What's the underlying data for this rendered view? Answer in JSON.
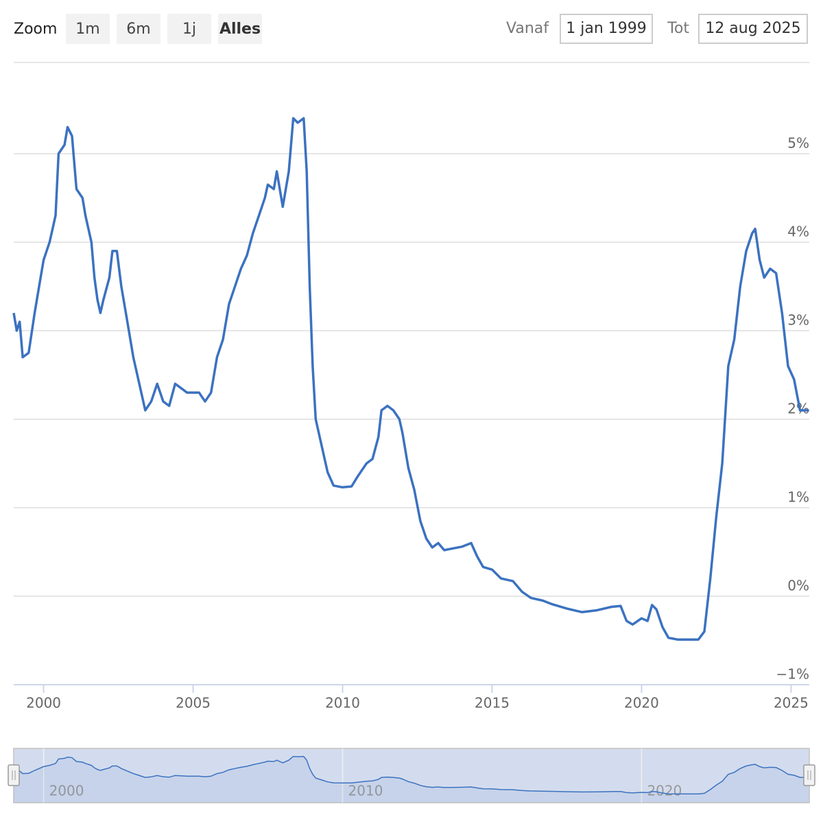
{
  "range_selector": {
    "zoom_label": "Zoom",
    "buttons": [
      "1m",
      "6m",
      "1j",
      "Alles"
    ],
    "from_label": "Vanaf",
    "from": "1 jan 1999",
    "to_label": "Tot",
    "to": "12 aug 2025"
  },
  "chart_data": {
    "type": "line",
    "color": "#3b72c0",
    "grid": true,
    "xlim": [
      1999.0,
      2025.61
    ],
    "xticks": [
      2000,
      2005,
      2010,
      2015,
      2020,
      2025
    ],
    "ylim": [
      -1,
      6
    ],
    "yticks": [
      {
        "value": -1,
        "label": "−1%"
      },
      {
        "value": 0,
        "label": "0%"
      },
      {
        "value": 1,
        "label": "1%"
      },
      {
        "value": 2,
        "label": "2%"
      },
      {
        "value": 3,
        "label": "3%"
      },
      {
        "value": 4,
        "label": "4%"
      },
      {
        "value": 5,
        "label": "5%"
      }
    ],
    "navigator_xticks": [
      2000,
      2010,
      2020
    ],
    "x": [
      1999.0,
      1999.1,
      1999.2,
      1999.3,
      1999.5,
      1999.7,
      1999.9,
      2000.0,
      2000.2,
      2000.4,
      2000.5,
      2000.7,
      2000.8,
      2000.95,
      2001.1,
      2001.3,
      2001.4,
      2001.6,
      2001.7,
      2001.8,
      2001.9,
      2002.0,
      2002.2,
      2002.3,
      2002.45,
      2002.6,
      2002.8,
      2003.0,
      2003.2,
      2003.4,
      2003.6,
      2003.8,
      2004.0,
      2004.2,
      2004.4,
      2004.6,
      2004.8,
      2005.0,
      2005.2,
      2005.4,
      2005.6,
      2005.8,
      2006.0,
      2006.2,
      2006.4,
      2006.6,
      2006.8,
      2007.0,
      2007.2,
      2007.4,
      2007.5,
      2007.7,
      2007.8,
      2008.0,
      2008.2,
      2008.35,
      2008.5,
      2008.7,
      2008.8,
      2008.9,
      2009.0,
      2009.1,
      2009.3,
      2009.5,
      2009.7,
      2010.0,
      2010.3,
      2010.5,
      2010.8,
      2011.0,
      2011.2,
      2011.3,
      2011.5,
      2011.7,
      2011.9,
      2012.0,
      2012.2,
      2012.4,
      2012.6,
      2012.8,
      2013.0,
      2013.2,
      2013.4,
      2013.7,
      2014.0,
      2014.3,
      2014.5,
      2014.7,
      2015.0,
      2015.3,
      2015.7,
      2016.0,
      2016.3,
      2016.7,
      2017.0,
      2017.5,
      2018.0,
      2018.5,
      2019.0,
      2019.3,
      2019.5,
      2019.7,
      2020.0,
      2020.2,
      2020.35,
      2020.5,
      2020.7,
      2020.9,
      2021.2,
      2021.6,
      2021.9,
      2022.1,
      2022.3,
      2022.5,
      2022.7,
      2022.9,
      2023.1,
      2023.3,
      2023.5,
      2023.7,
      2023.8,
      2023.95,
      2024.1,
      2024.3,
      2024.5,
      2024.7,
      2024.9,
      2025.1,
      2025.3,
      2025.6
    ],
    "values": [
      3.2,
      3.0,
      3.1,
      2.7,
      2.75,
      3.2,
      3.6,
      3.8,
      4.0,
      4.3,
      5.0,
      5.1,
      5.3,
      5.2,
      4.6,
      4.5,
      4.3,
      4.0,
      3.6,
      3.35,
      3.2,
      3.35,
      3.6,
      3.9,
      3.9,
      3.5,
      3.1,
      2.7,
      2.4,
      2.1,
      2.2,
      2.4,
      2.2,
      2.15,
      2.4,
      2.35,
      2.3,
      2.3,
      2.3,
      2.2,
      2.3,
      2.7,
      2.9,
      3.3,
      3.5,
      3.7,
      3.85,
      4.1,
      4.3,
      4.5,
      4.65,
      4.6,
      4.8,
      4.4,
      4.8,
      5.4,
      5.35,
      5.4,
      4.8,
      3.5,
      2.6,
      2.0,
      1.7,
      1.4,
      1.25,
      1.23,
      1.24,
      1.35,
      1.5,
      1.55,
      1.8,
      2.1,
      2.15,
      2.1,
      2.0,
      1.85,
      1.45,
      1.2,
      0.85,
      0.65,
      0.55,
      0.6,
      0.52,
      0.54,
      0.56,
      0.6,
      0.45,
      0.33,
      0.3,
      0.2,
      0.17,
      0.05,
      -0.02,
      -0.05,
      -0.09,
      -0.14,
      -0.18,
      -0.16,
      -0.12,
      -0.11,
      -0.28,
      -0.32,
      -0.25,
      -0.28,
      -0.1,
      -0.15,
      -0.35,
      -0.47,
      -0.49,
      -0.49,
      -0.49,
      -0.4,
      0.2,
      0.9,
      1.5,
      2.6,
      2.9,
      3.5,
      3.9,
      4.1,
      4.15,
      3.8,
      3.6,
      3.7,
      3.65,
      3.2,
      2.6,
      2.45,
      2.1,
      2.1
    ]
  }
}
